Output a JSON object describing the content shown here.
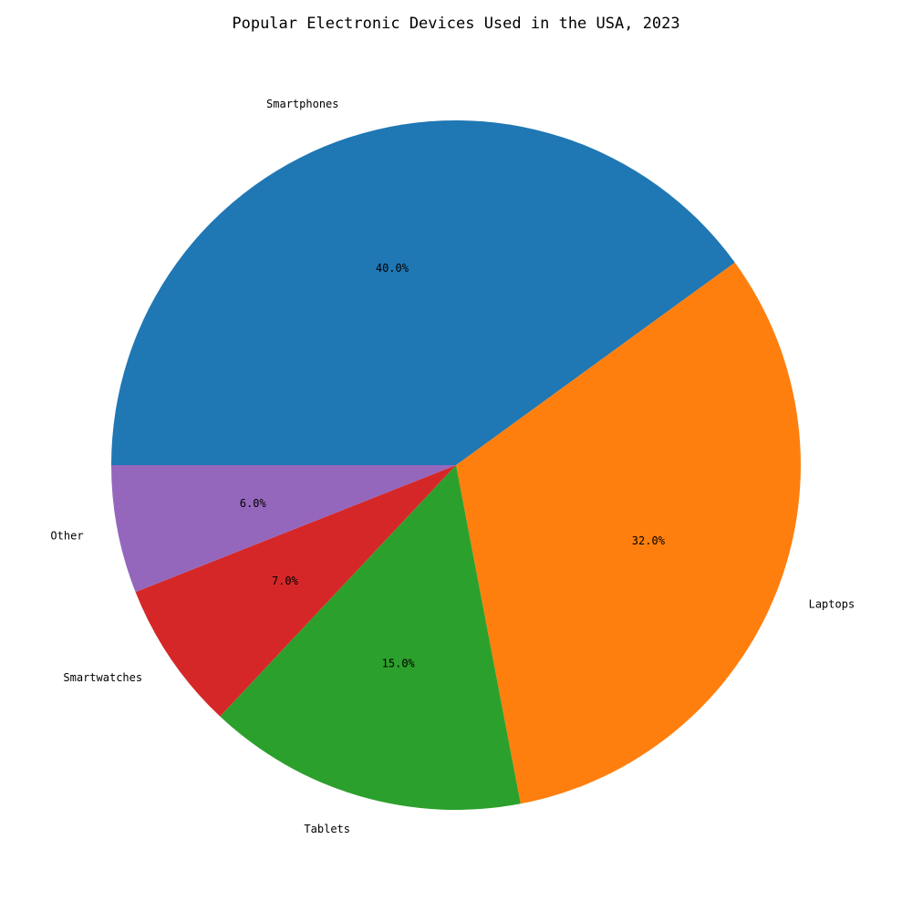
{
  "chart_data": {
    "type": "pie",
    "title": "Popular Electronic Devices Used in the USA, 2023",
    "start_angle_deg": 180,
    "direction": "clockwise",
    "slices": [
      {
        "label": "Smartphones",
        "value": 40.0,
        "pct_label": "40.0%",
        "color": "#1f77b4"
      },
      {
        "label": "Laptops",
        "value": 32.0,
        "pct_label": "32.0%",
        "color": "#ff7f0e"
      },
      {
        "label": "Tablets",
        "value": 15.0,
        "pct_label": "15.0%",
        "color": "#2ca02c"
      },
      {
        "label": "Smartwatches",
        "value": 7.0,
        "pct_label": "7.0%",
        "color": "#d62728"
      },
      {
        "label": "Other",
        "value": 6.0,
        "pct_label": "6.0%",
        "color": "#9467bd"
      }
    ]
  }
}
